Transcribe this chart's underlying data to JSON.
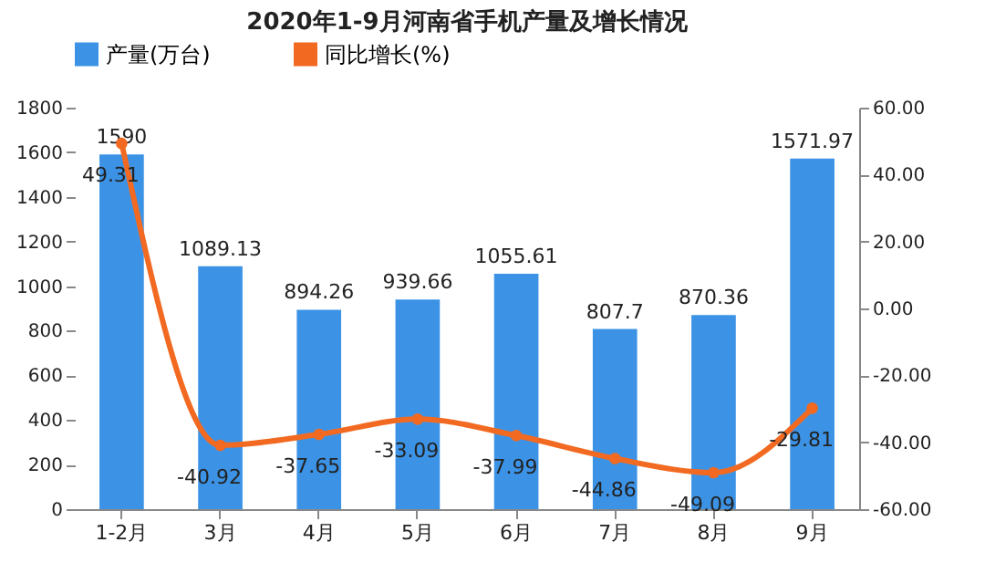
{
  "chart_data": {
    "type": "bar",
    "title": "2020年1-9月河南省手机产量及增长情况",
    "categories": [
      "1-2月",
      "3月",
      "4月",
      "5月",
      "6月",
      "7月",
      "8月",
      "9月"
    ],
    "series": [
      {
        "name": "产量(万台)",
        "color": "#3c93e6",
        "values": [
          1590,
          1089.13,
          894.26,
          939.66,
          1055.61,
          807.7,
          870.36,
          1571.97
        ]
      },
      {
        "name": "同比增长(%)",
        "type": "line",
        "axis": "y2",
        "color": "#f26a21",
        "values": [
          49.31,
          -40.92,
          -37.65,
          -33.09,
          -37.99,
          -44.86,
          -49.09,
          -29.81
        ]
      }
    ],
    "ylim": [
      0,
      1800
    ],
    "yticks": [
      0,
      200,
      400,
      600,
      800,
      1000,
      1200,
      1400,
      1600,
      1800
    ],
    "y2lim": [
      -60,
      60
    ],
    "y2ticks": [
      {
        "value": -60,
        "label": "-60.00"
      },
      {
        "value": -40,
        "label": "-40.00"
      },
      {
        "value": -20,
        "label": "-20.00"
      },
      {
        "value": 0,
        "label": "0.00"
      },
      {
        "value": 20,
        "label": "20.00"
      },
      {
        "value": 40,
        "label": "40.00"
      },
      {
        "value": 60,
        "label": "60.00"
      }
    ],
    "data_labels": true,
    "legend": "top",
    "marker": "circle",
    "grid": false
  }
}
